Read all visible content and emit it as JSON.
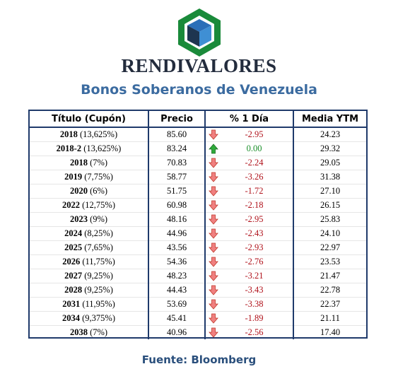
{
  "brand": {
    "name": "RENDIVALORES",
    "logo_icon": "cube-hexagon-logo",
    "logo_colors": {
      "hex": "#1a8a3a",
      "cube_top": "#2b6fb8",
      "cube_left": "#1e3550",
      "cube_right": "#3f8fd4"
    }
  },
  "subtitle": "Bonos Soberanos de Venezuela",
  "table": {
    "headers": [
      "Título (Cupón)",
      "Precio",
      "% 1 Día",
      "Media YTM"
    ],
    "rows": [
      {
        "year": "2018",
        "coupon": "(13,625%)",
        "price": "85.60",
        "change": "-2.95",
        "direction": "down",
        "ytm": "24.23"
      },
      {
        "year": "2018-2",
        "coupon": "(13,625%)",
        "price": "83.24",
        "change": "0.00",
        "direction": "up",
        "ytm": "29.32"
      },
      {
        "year": "2018",
        "coupon": "(7%)",
        "price": "70.83",
        "change": "-2.24",
        "direction": "down",
        "ytm": "29.05"
      },
      {
        "year": "2019",
        "coupon": "(7,75%)",
        "price": "58.77",
        "change": "-3.26",
        "direction": "down",
        "ytm": "31.38"
      },
      {
        "year": "2020",
        "coupon": "(6%)",
        "price": "51.75",
        "change": "-1.72",
        "direction": "down",
        "ytm": "27.10"
      },
      {
        "year": "2022",
        "coupon": "(12,75%)",
        "price": "60.98",
        "change": "-2.18",
        "direction": "down",
        "ytm": "26.15"
      },
      {
        "year": "2023",
        "coupon": "(9%)",
        "price": "48.16",
        "change": "-2.95",
        "direction": "down",
        "ytm": "25.83"
      },
      {
        "year": "2024",
        "coupon": "(8,25%)",
        "price": "44.96",
        "change": "-2.43",
        "direction": "down",
        "ytm": "24.10"
      },
      {
        "year": "2025",
        "coupon": "(7,65%)",
        "price": "43.56",
        "change": "-2.93",
        "direction": "down",
        "ytm": "22.97"
      },
      {
        "year": "2026",
        "coupon": "(11,75%)",
        "price": "54.36",
        "change": "-2.76",
        "direction": "down",
        "ytm": "23.53"
      },
      {
        "year": "2027",
        "coupon": "(9,25%)",
        "price": "48.23",
        "change": "-3.21",
        "direction": "down",
        "ytm": "21.47"
      },
      {
        "year": "2028",
        "coupon": "(9,25%)",
        "price": "44.43",
        "change": "-3.43",
        "direction": "down",
        "ytm": "22.78"
      },
      {
        "year": "2031",
        "coupon": "(11,95%)",
        "price": "53.69",
        "change": "-3.38",
        "direction": "down",
        "ytm": "22.37"
      },
      {
        "year": "2034",
        "coupon": "(9,375%)",
        "price": "45.41",
        "change": "-1.89",
        "direction": "down",
        "ytm": "21.11"
      },
      {
        "year": "2038",
        "coupon": "(7%)",
        "price": "40.96",
        "change": "-2.56",
        "direction": "down",
        "ytm": "17.40"
      }
    ],
    "arrow_colors": {
      "down": "#f08080",
      "down_stroke": "#c0392b",
      "up": "#2eaa3a",
      "up_stroke": "#1a6b22"
    }
  },
  "source": "Fuente: Bloomberg"
}
